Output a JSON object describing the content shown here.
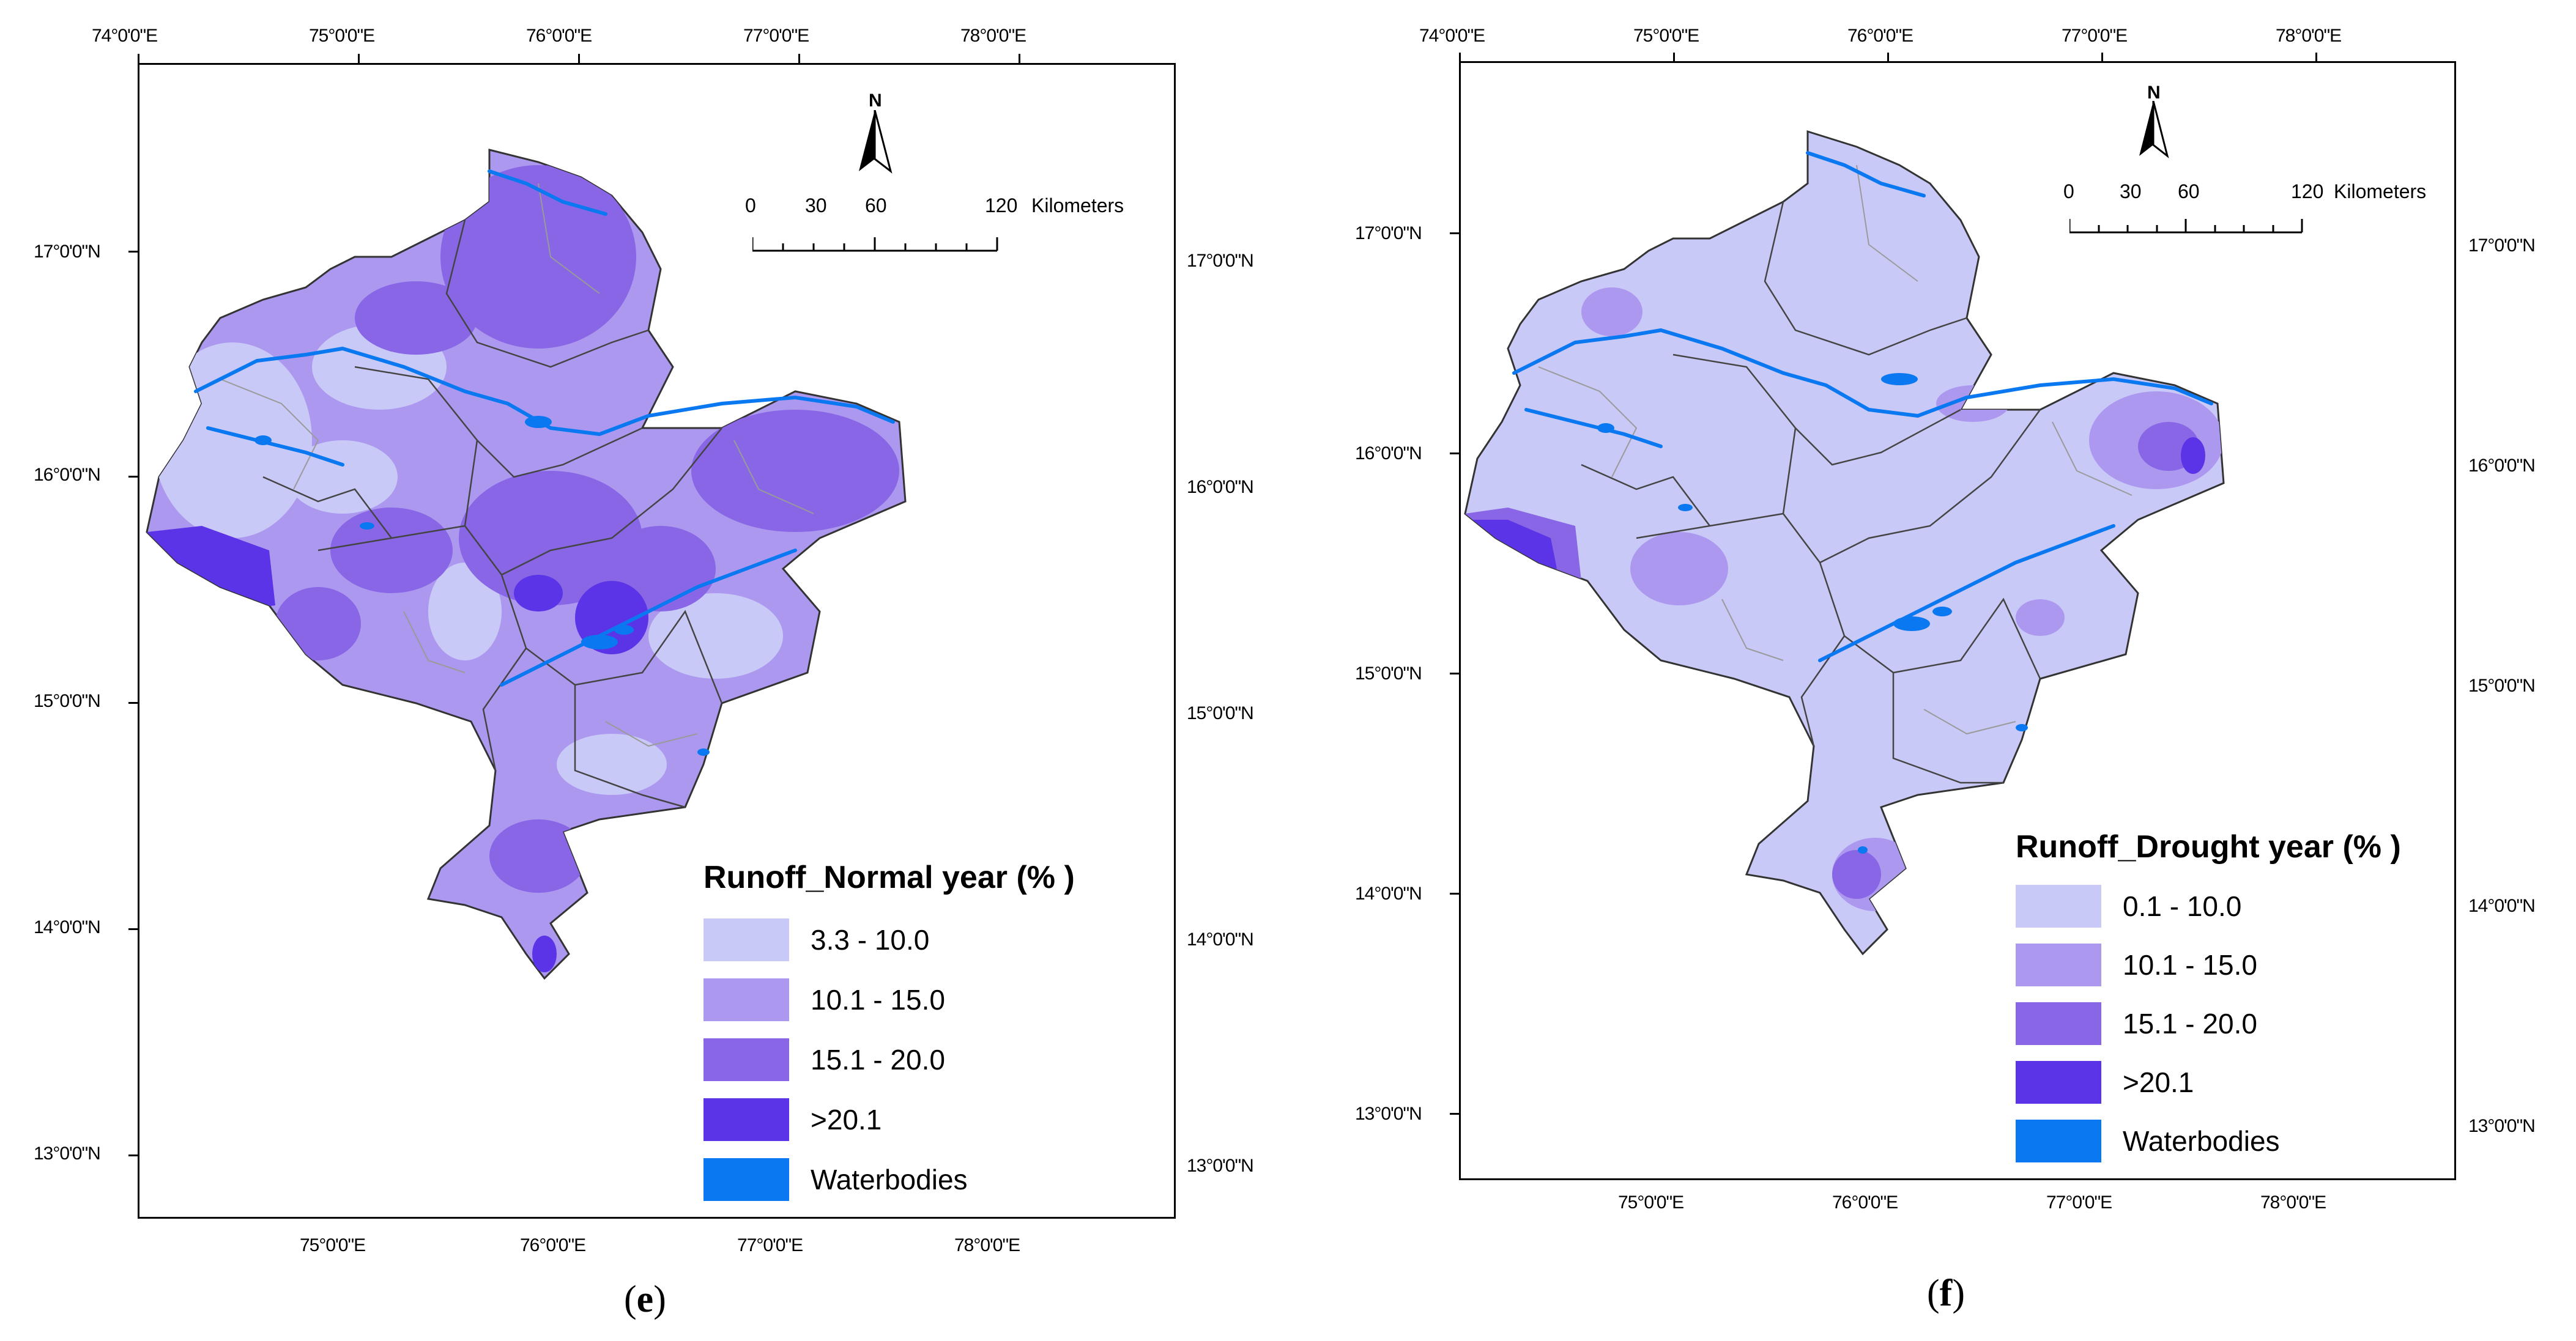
{
  "panels": [
    {
      "id": "e",
      "caption_letter": "e",
      "top_lon_labels": [
        "74°0'0\"E",
        "75°0'0\"E",
        "76°0'0\"E",
        "77°0'0\"E",
        "78°0'0\"E"
      ],
      "bottom_lon_labels": [
        "75°0'0\"E",
        "76°0'0\"E",
        "77°0'0\"E",
        "78°0'0\"E"
      ],
      "left_lat_labels": [
        "17°0'0\"N",
        "16°0'0\"N",
        "15°0'0\"N",
        "14°0'0\"N",
        "13°0'0\"N"
      ],
      "right_lat_labels": [
        "17°0'0\"N",
        "16°0'0\"N",
        "15°0'0\"N",
        "14°0'0\"N",
        "13°0'0\"N"
      ],
      "north_label": "N",
      "scale": {
        "labels": [
          "0",
          "30",
          "60",
          "120"
        ],
        "unit": "Kilometers"
      },
      "legend": {
        "title": "Runoff_Normal year (% )",
        "items": [
          {
            "label": "3.3 - 10.0",
            "color": "#c9c9f8"
          },
          {
            "label": "10.1 - 15.0",
            "color": "#ad98f0"
          },
          {
            "label": "15.1 - 20.0",
            "color": "#8866e6"
          },
          {
            "label": ">20.1",
            "color": "#5a34e6"
          },
          {
            "label": "Waterbodies",
            "color": "#0a78f0"
          }
        ]
      }
    },
    {
      "id": "f",
      "caption_letter": "f",
      "top_lon_labels": [
        "74°0'0\"E",
        "75°0'0\"E",
        "76°0'0\"E",
        "77°0'0\"E",
        "78°0'0\"E"
      ],
      "bottom_lon_labels": [
        "75°0'0\"E",
        "76°0'0\"E",
        "77°0'0\"E",
        "78°0'0\"E"
      ],
      "left_lat_labels": [
        "17°0'0\"N",
        "16°0'0\"N",
        "15°0'0\"N",
        "14°0'0\"N",
        "13°0'0\"N"
      ],
      "right_lat_labels": [
        "17°0'0\"N",
        "16°0'0\"N",
        "15°0'0\"N",
        "14°0'0\"N",
        "13°0'0\"N"
      ],
      "north_label": "N",
      "scale": {
        "labels": [
          "0",
          "30",
          "60",
          "120"
        ],
        "unit": "Kilometers"
      },
      "legend": {
        "title": "Runoff_Drought year (% )",
        "items": [
          {
            "label": "0.1 - 10.0",
            "color": "#c9c9f8"
          },
          {
            "label": "10.1 - 15.0",
            "color": "#ad98f0"
          },
          {
            "label": "15.1 - 20.0",
            "color": "#8866e6"
          },
          {
            "label": ">20.1",
            "color": "#5a34e6"
          },
          {
            "label": "Waterbodies",
            "color": "#0a78f0"
          }
        ]
      }
    }
  ]
}
